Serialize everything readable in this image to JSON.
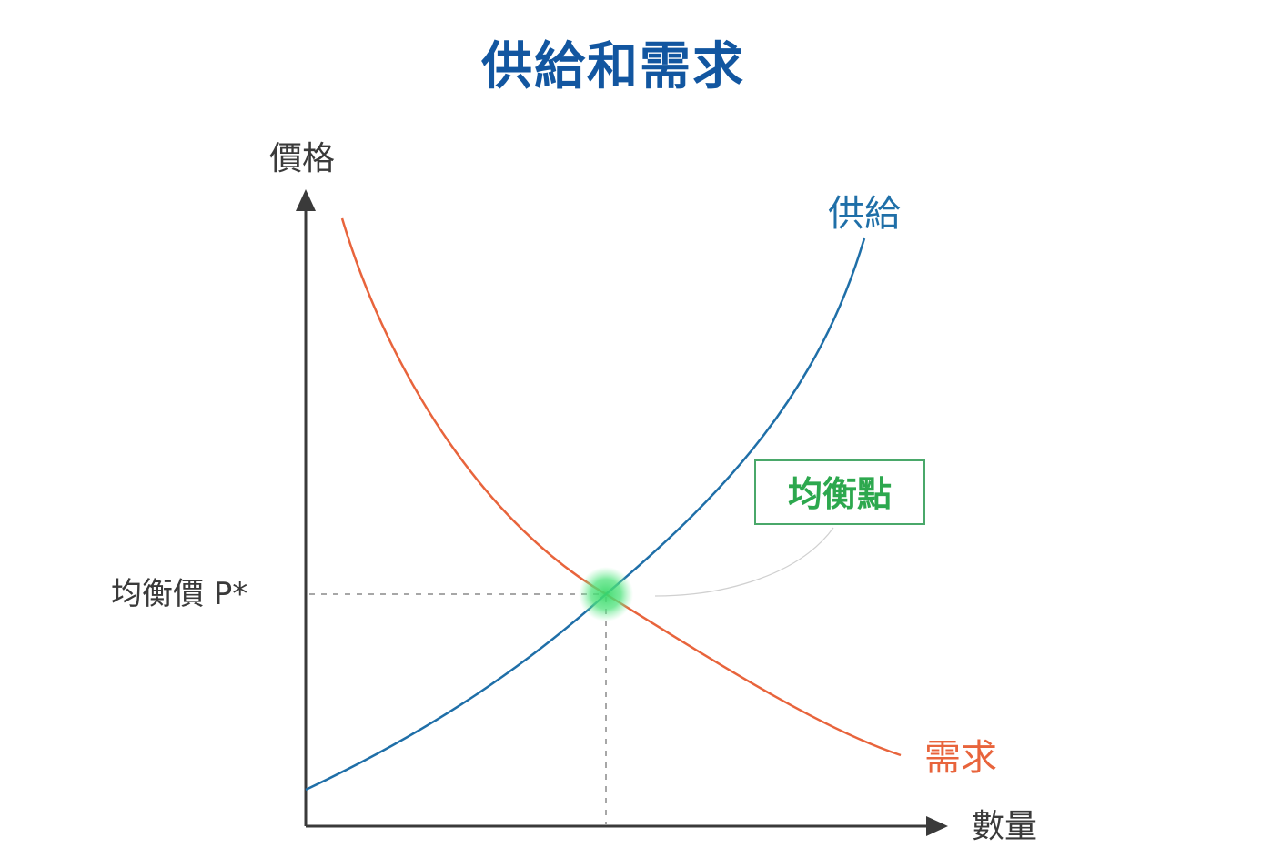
{
  "title": "供給和需求",
  "axes": {
    "y_label": "價格",
    "x_label": "數量"
  },
  "curves": {
    "supply_label": "供給",
    "demand_label": "需求"
  },
  "equilibrium": {
    "point_label": "均衡點",
    "price_label": "均衡價 P*"
  },
  "colors": {
    "title": "#1256a0",
    "supply": "#1f6fa8",
    "demand": "#e8643c",
    "equilibrium": "#2da84e",
    "axis": "#3a3a3a",
    "guide": "#8a8a8a"
  }
}
